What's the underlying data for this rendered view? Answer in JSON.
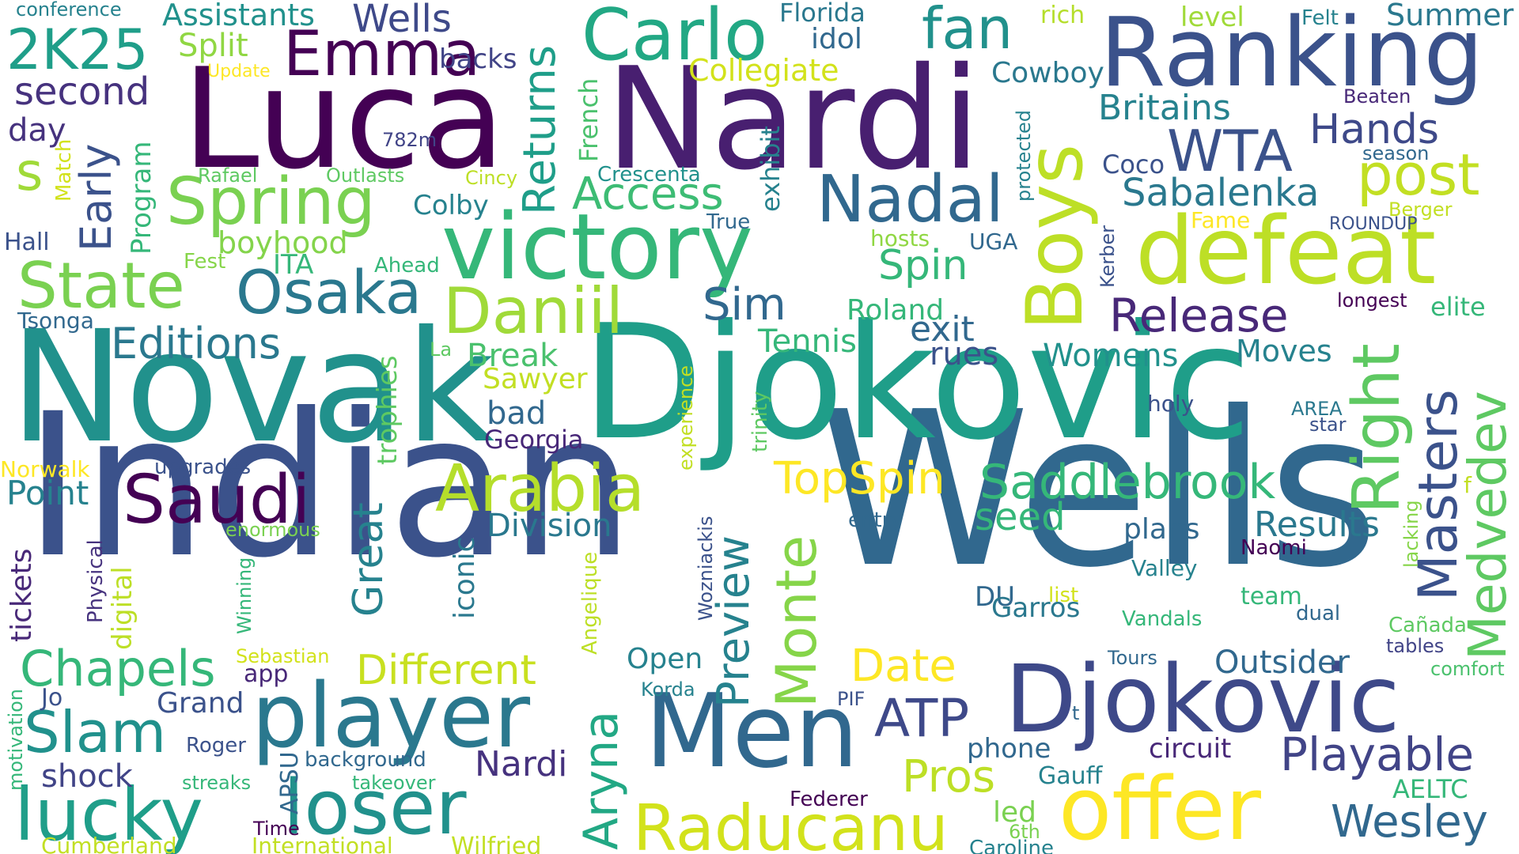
{
  "palette": {
    "background": "#ffffff",
    "dark_purple": "#440154",
    "indigo": "#3b528b",
    "blue": "#31688e",
    "teal": "#21918c",
    "green": "#35b779",
    "lime": "#90d743",
    "yellow": "#fde725"
  },
  "words": [
    {
      "text": "Indian",
      "color": "#3b528b"
    },
    {
      "text": "Wells",
      "color": "#31688e"
    },
    {
      "text": "Novak",
      "color": "#21918c"
    },
    {
      "text": "Djokovic",
      "color": "#1f9e89"
    },
    {
      "text": "Luca",
      "color": "#440154"
    },
    {
      "text": "Nardi",
      "color": "#481f70"
    },
    {
      "text": "Ranking",
      "color": "#3b528b"
    },
    {
      "text": "victory",
      "color": "#35b779"
    },
    {
      "text": "defeat",
      "color": "#bddf26"
    },
    {
      "text": "Boys",
      "color": "#bddf26"
    },
    {
      "text": "Djokovic",
      "color": "#3e4989"
    },
    {
      "text": "Men",
      "color": "#31688e"
    },
    {
      "text": "player",
      "color": "#2a788e"
    },
    {
      "text": "offer",
      "color": "#fde725"
    },
    {
      "text": "lucky",
      "color": "#1f9e89"
    },
    {
      "text": "loser",
      "color": "#21918c"
    },
    {
      "text": "Raducanu",
      "color": "#d2e21b"
    },
    {
      "text": "Saudi",
      "color": "#440154"
    },
    {
      "text": "Arabia",
      "color": "#b5de2b"
    },
    {
      "text": "Carlo",
      "color": "#22a884"
    },
    {
      "text": "Emma",
      "color": "#440154"
    },
    {
      "text": "Spring",
      "color": "#7ad151"
    },
    {
      "text": "State",
      "color": "#7ad151"
    },
    {
      "text": "Nadal",
      "color": "#31688e"
    },
    {
      "text": "Osaka",
      "color": "#2a788e"
    },
    {
      "text": "Daniil",
      "color": "#a0da39"
    },
    {
      "text": "Release",
      "color": "#482878"
    },
    {
      "text": "Right",
      "color": "#5ec962"
    },
    {
      "text": "Masters",
      "color": "#3b528b"
    },
    {
      "text": "Medvedev",
      "color": "#5ec962"
    },
    {
      "text": "Saddlebrook",
      "color": "#35b779"
    },
    {
      "text": "TopSpin",
      "color": "#fde725"
    },
    {
      "text": "Monte",
      "color": "#86d549"
    },
    {
      "text": "Preview",
      "color": "#26828e"
    },
    {
      "text": "Aryna",
      "color": "#22a884"
    },
    {
      "text": "ATP",
      "color": "#3e4989"
    },
    {
      "text": "Playable",
      "color": "#414487"
    },
    {
      "text": "Wesley",
      "color": "#31688e"
    },
    {
      "text": "post",
      "color": "#c2df23"
    },
    {
      "text": "fan",
      "color": "#21918c"
    },
    {
      "text": "2K25",
      "color": "#1f9e89"
    },
    {
      "text": "Wells",
      "color": "#3e4989"
    },
    {
      "text": "WTA",
      "color": "#3b528b"
    },
    {
      "text": "Hands",
      "color": "#3e4989"
    },
    {
      "text": "Britains",
      "color": "#26828e"
    },
    {
      "text": "Returns",
      "color": "#1f9e89"
    },
    {
      "text": "Access",
      "color": "#3dbc74"
    },
    {
      "text": "Sabalenka",
      "color": "#2a788e"
    },
    {
      "text": "Spin",
      "color": "#35b779"
    },
    {
      "text": "Sim",
      "color": "#31688e"
    },
    {
      "text": "Early",
      "color": "#3b528b"
    },
    {
      "text": "s",
      "color": "#a0da39"
    },
    {
      "text": "boyhood",
      "color": "#84d44b"
    },
    {
      "text": "Editions",
      "color": "#2a788e"
    },
    {
      "text": "Chapels",
      "color": "#35b779"
    },
    {
      "text": "Slam",
      "color": "#21918c"
    },
    {
      "text": "Different",
      "color": "#c8e020"
    },
    {
      "text": "Date",
      "color": "#fde725"
    },
    {
      "text": "Pros",
      "color": "#bddf26"
    },
    {
      "text": "Outsider",
      "color": "#31688e"
    },
    {
      "text": "Great",
      "color": "#26828e"
    },
    {
      "text": "Division",
      "color": "#2a788e"
    },
    {
      "text": "Results",
      "color": "#2a788e"
    },
    {
      "text": "seed",
      "color": "#35b779"
    },
    {
      "text": "Moves",
      "color": "#26828e"
    },
    {
      "text": "Womens",
      "color": "#21918c"
    },
    {
      "text": "exit",
      "color": "#31688e"
    },
    {
      "text": "rues",
      "color": "#3b528b"
    },
    {
      "text": "Tennis",
      "color": "#35b779"
    },
    {
      "text": "Roland",
      "color": "#35b779"
    },
    {
      "text": "Break",
      "color": "#4ac16d"
    },
    {
      "text": "Sawyer",
      "color": "#c2df23"
    },
    {
      "text": "bad",
      "color": "#31688e"
    },
    {
      "text": "Georgia",
      "color": "#482878"
    },
    {
      "text": "second",
      "color": "#46327e"
    },
    {
      "text": "day",
      "color": "#46327e"
    },
    {
      "text": "Split",
      "color": "#90d743"
    },
    {
      "text": "Assistants",
      "color": "#21918c"
    },
    {
      "text": "backs",
      "color": "#414487"
    },
    {
      "text": "Florida",
      "color": "#2a788e"
    },
    {
      "text": "idol",
      "color": "#31688e"
    },
    {
      "text": "Collegiate",
      "color": "#d2e21b"
    },
    {
      "text": "Cowboy",
      "color": "#2a788e"
    },
    {
      "text": "Summer",
      "color": "#2a788e"
    },
    {
      "text": "level",
      "color": "#a0da39"
    },
    {
      "text": "Felt",
      "color": "#26828e"
    },
    {
      "text": "rich",
      "color": "#b5de2b"
    },
    {
      "text": "Beaten",
      "color": "#482878"
    },
    {
      "text": "season",
      "color": "#31688e"
    },
    {
      "text": "Coco",
      "color": "#3b528b"
    },
    {
      "text": "Berger",
      "color": "#c2df23"
    },
    {
      "text": "Fame",
      "color": "#fde725"
    },
    {
      "text": "ROUNDUP",
      "color": "#3b528b"
    },
    {
      "text": "longest",
      "color": "#440154"
    },
    {
      "text": "elite",
      "color": "#35b779"
    },
    {
      "text": "UGA",
      "color": "#31688e"
    },
    {
      "text": "hosts",
      "color": "#90d743"
    },
    {
      "text": "Kerber",
      "color": "#3b528b"
    },
    {
      "text": "protected",
      "color": "#26828e"
    },
    {
      "text": "exhibit",
      "color": "#26828e"
    },
    {
      "text": "French",
      "color": "#4ac16d"
    },
    {
      "text": "Crescenta",
      "color": "#21918c"
    },
    {
      "text": "Colby",
      "color": "#26828e"
    },
    {
      "text": "True",
      "color": "#31688e"
    },
    {
      "text": "782m",
      "color": "#414487"
    },
    {
      "text": "Update",
      "color": "#fde725"
    },
    {
      "text": "conference",
      "color": "#26828e"
    },
    {
      "text": "Program",
      "color": "#35b779"
    },
    {
      "text": "Match",
      "color": "#d2e21b"
    },
    {
      "text": "Rafael",
      "color": "#5ec962"
    },
    {
      "text": "Outlasts",
      "color": "#5ec962"
    },
    {
      "text": "Cincy",
      "color": "#bddf26"
    },
    {
      "text": "Hall",
      "color": "#3b528b"
    },
    {
      "text": "Fest",
      "color": "#86d549"
    },
    {
      "text": "ITA",
      "color": "#35b779"
    },
    {
      "text": "Ahead",
      "color": "#35b779"
    },
    {
      "text": "Tsonga",
      "color": "#31688e"
    },
    {
      "text": "La",
      "color": "#5ec962"
    },
    {
      "text": "trophies",
      "color": "#5ec962"
    },
    {
      "text": "experience",
      "color": "#c2df23"
    },
    {
      "text": "trinity",
      "color": "#5ec962"
    },
    {
      "text": "holy",
      "color": "#3b528b"
    },
    {
      "text": "AREA",
      "color": "#2a788e"
    },
    {
      "text": "star",
      "color": "#3b528b"
    },
    {
      "text": "Norwalk",
      "color": "#fde725"
    },
    {
      "text": "upgrades",
      "color": "#3b528b"
    },
    {
      "text": "Point",
      "color": "#26828e"
    },
    {
      "text": "enormous",
      "color": "#7ad151"
    },
    {
      "text": "iconic",
      "color": "#2a788e"
    },
    {
      "text": "entry",
      "color": "#31688e"
    },
    {
      "text": "plans",
      "color": "#31688e"
    },
    {
      "text": "Naomi",
      "color": "#440154"
    },
    {
      "text": "lacking",
      "color": "#86d549"
    },
    {
      "text": "f",
      "color": "#c2df23"
    },
    {
      "text": "tickets",
      "color": "#482878"
    },
    {
      "text": "digital",
      "color": "#bddf26"
    },
    {
      "text": "Physical",
      "color": "#46327e"
    },
    {
      "text": "Winning",
      "color": "#35b779"
    },
    {
      "text": "Angelique",
      "color": "#bddf26"
    },
    {
      "text": "Wozniackis",
      "color": "#3b528b"
    },
    {
      "text": "Valley",
      "color": "#26828e"
    },
    {
      "text": "list",
      "color": "#d2e21b"
    },
    {
      "text": "team",
      "color": "#35b779"
    },
    {
      "text": "dual",
      "color": "#31688e"
    },
    {
      "text": "DU",
      "color": "#31688e"
    },
    {
      "text": "Garros",
      "color": "#2a788e"
    },
    {
      "text": "Vandals",
      "color": "#35b779"
    },
    {
      "text": "Cañada",
      "color": "#5ec962"
    },
    {
      "text": "tables",
      "color": "#414487"
    },
    {
      "text": "comfort",
      "color": "#4ac16d"
    },
    {
      "text": "Sebastian",
      "color": "#d2e21b"
    },
    {
      "text": "app",
      "color": "#482878"
    },
    {
      "text": "Open",
      "color": "#26828e"
    },
    {
      "text": "Korda",
      "color": "#26828e"
    },
    {
      "text": "PIF",
      "color": "#3b528b"
    },
    {
      "text": "Tours",
      "color": "#31688e"
    },
    {
      "text": "t",
      "color": "#31688e"
    },
    {
      "text": "Jo",
      "color": "#3b528b"
    },
    {
      "text": "Grand",
      "color": "#3b528b"
    },
    {
      "text": "motivation",
      "color": "#35b779"
    },
    {
      "text": "Roger",
      "color": "#3b528b"
    },
    {
      "text": "background",
      "color": "#31688e"
    },
    {
      "text": "shock",
      "color": "#414487"
    },
    {
      "text": "APSU",
      "color": "#31688e"
    },
    {
      "text": "streaks",
      "color": "#35b779"
    },
    {
      "text": "takeover",
      "color": "#35b779"
    },
    {
      "text": "Nardi",
      "color": "#46327e"
    },
    {
      "text": "phone",
      "color": "#31688e"
    },
    {
      "text": "circuit",
      "color": "#482878"
    },
    {
      "text": "Gauff",
      "color": "#26828e"
    },
    {
      "text": "AELTC",
      "color": "#35b779"
    },
    {
      "text": "Federer",
      "color": "#440154"
    },
    {
      "text": "led",
      "color": "#7ad151"
    },
    {
      "text": "6th",
      "color": "#7ad151"
    },
    {
      "text": "Time",
      "color": "#440154"
    },
    {
      "text": "Cumberland",
      "color": "#c2df23"
    },
    {
      "text": "International",
      "color": "#c2df23"
    },
    {
      "text": "Wilfried",
      "color": "#c2df23"
    },
    {
      "text": "Caroline",
      "color": "#26828e"
    }
  ]
}
